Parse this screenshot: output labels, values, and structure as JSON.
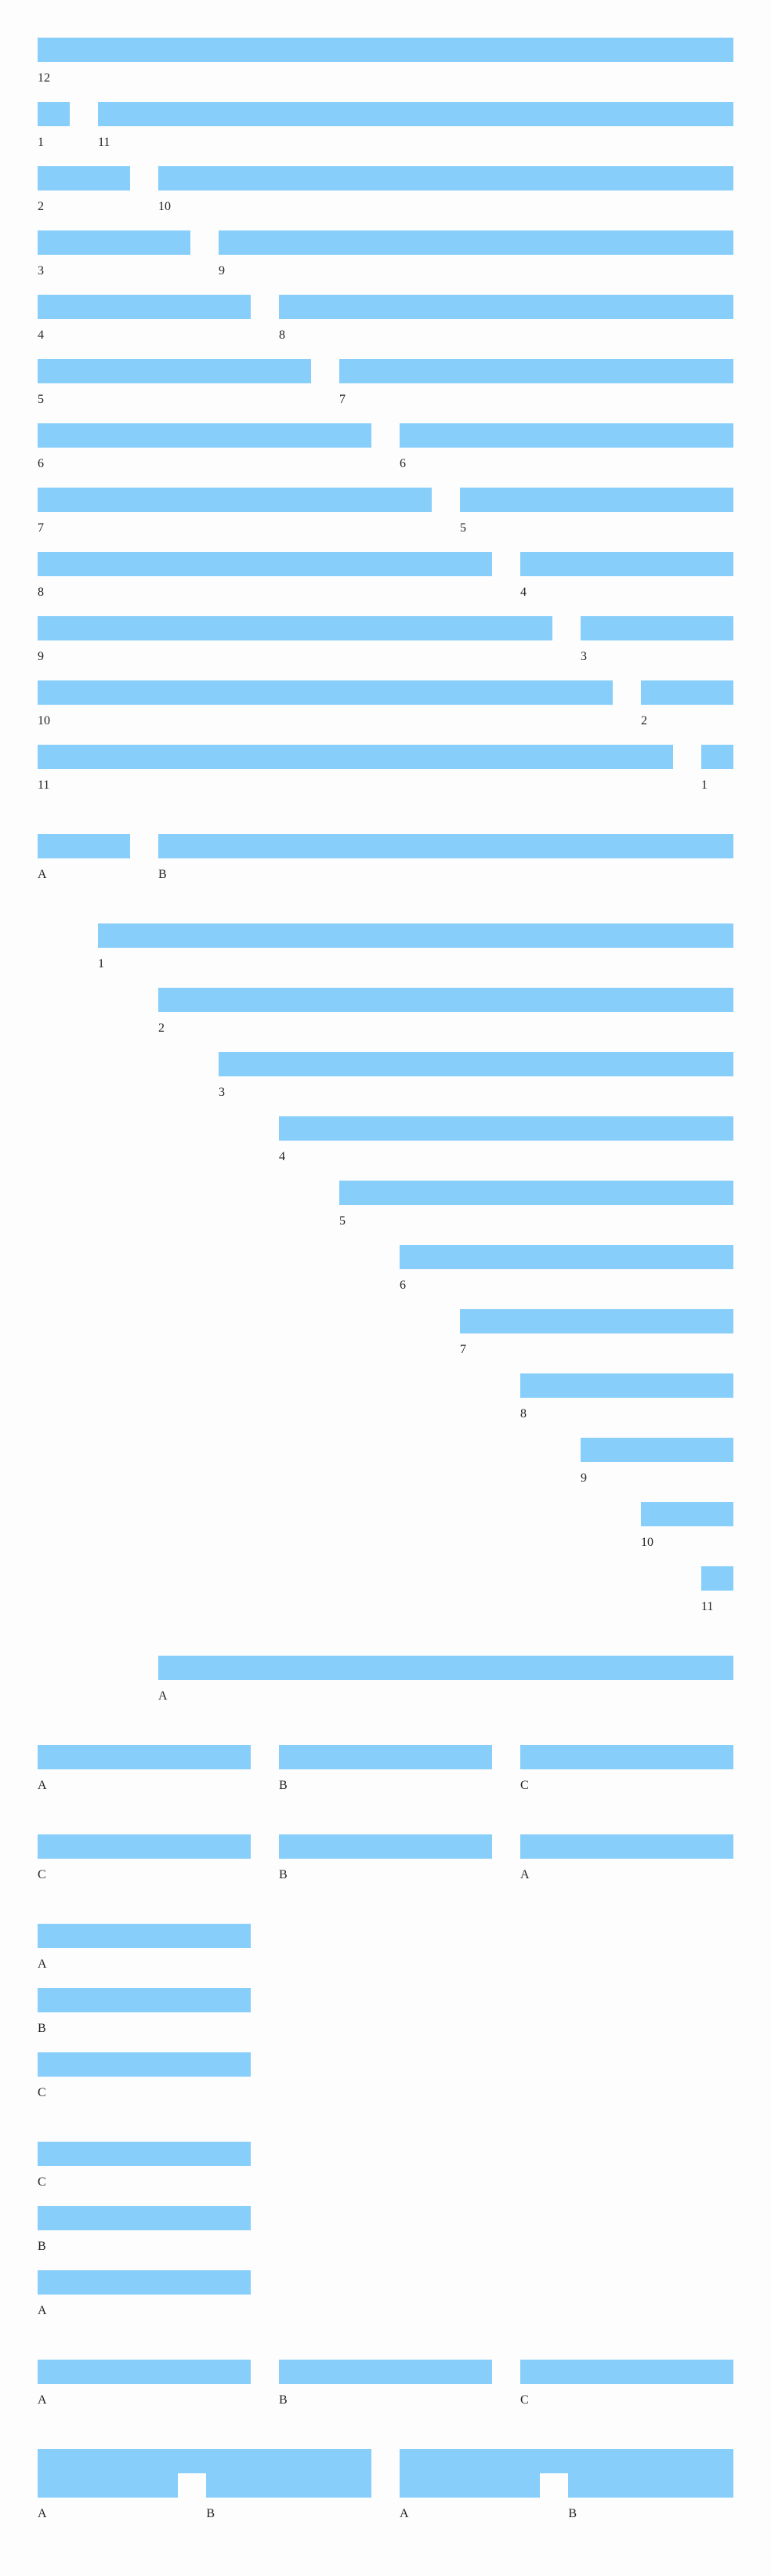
{
  "colors": {
    "bar": "#87cefa",
    "background": "#fdfdfd",
    "text": "#222222"
  },
  "sections": [
    {
      "labels": [
        "12"
      ]
    },
    {
      "labels": [
        "1",
        "11"
      ]
    },
    {
      "labels": [
        "2",
        "10"
      ]
    },
    {
      "labels": [
        "3",
        "9"
      ]
    },
    {
      "labels": [
        "4",
        "8"
      ]
    },
    {
      "labels": [
        "5",
        "7"
      ]
    },
    {
      "labels": [
        "6",
        "6"
      ]
    },
    {
      "labels": [
        "7",
        "5"
      ]
    },
    {
      "labels": [
        "8",
        "4"
      ]
    },
    {
      "labels": [
        "9",
        "3"
      ]
    },
    {
      "labels": [
        "10",
        "2"
      ]
    },
    {
      "labels": [
        "11",
        "1"
      ]
    },
    {
      "labels": [
        "A",
        "B"
      ]
    },
    {
      "labels": [
        "1"
      ]
    },
    {
      "labels": [
        "2"
      ]
    },
    {
      "labels": [
        "3"
      ]
    },
    {
      "labels": [
        "4"
      ]
    },
    {
      "labels": [
        "5"
      ]
    },
    {
      "labels": [
        "6"
      ]
    },
    {
      "labels": [
        "7"
      ]
    },
    {
      "labels": [
        "8"
      ]
    },
    {
      "labels": [
        "9"
      ]
    },
    {
      "labels": [
        "10"
      ]
    },
    {
      "labels": [
        "11"
      ]
    },
    {
      "labels": [
        "A"
      ]
    },
    {
      "labels": [
        "A",
        "B",
        "C"
      ]
    },
    {
      "labels": [
        "C",
        "B",
        "A"
      ]
    },
    {
      "labels": [
        "A"
      ]
    },
    {
      "labels": [
        "B"
      ]
    },
    {
      "labels": [
        "C"
      ]
    },
    {
      "labels": [
        "C"
      ]
    },
    {
      "labels": [
        "B"
      ]
    },
    {
      "labels": [
        "A"
      ]
    },
    {
      "labels": [
        "A",
        "B",
        "C"
      ]
    },
    {
      "labels": [
        "A",
        "B",
        "A",
        "B"
      ]
    }
  ]
}
